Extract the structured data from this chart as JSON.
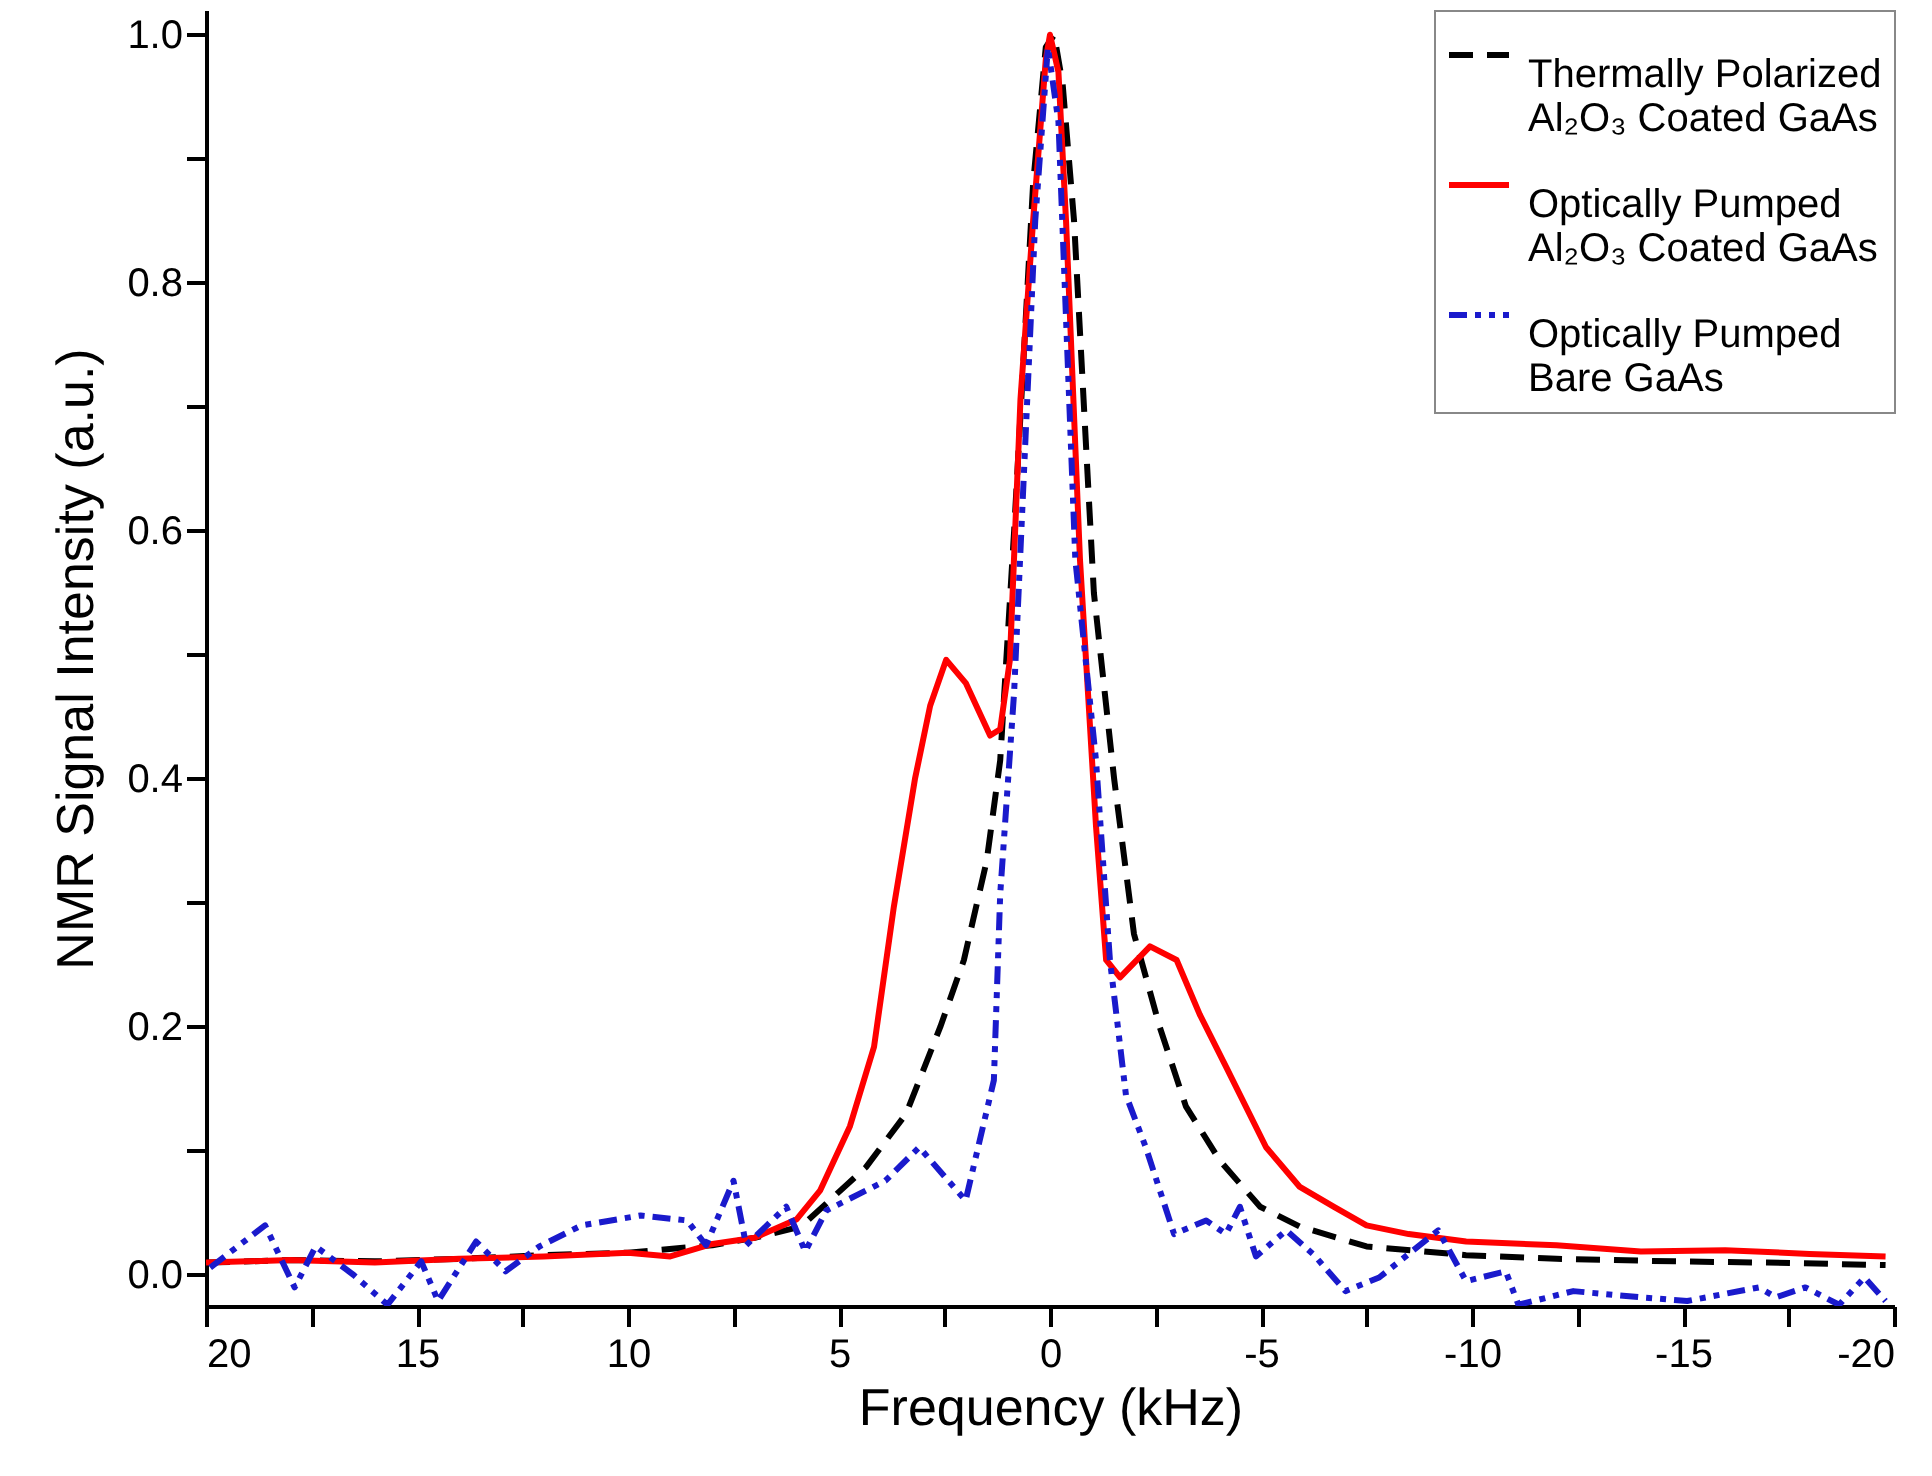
{
  "chart_data": {
    "type": "line",
    "xlabel": "Frequency (kHz)",
    "ylabel": "NMR Signal Intensity (a.u.)",
    "xlim": [
      20,
      -20
    ],
    "ylim": [
      -0.025,
      1.02
    ],
    "xticks": [
      20,
      {
        "value": 17.5,
        "label": null
      },
      15,
      {
        "value": 12.5,
        "label": null
      },
      10,
      {
        "value": 7.5,
        "label": null
      },
      5,
      {
        "value": 2.5,
        "label": null
      },
      0,
      {
        "value": -2.5,
        "label": null
      },
      -5,
      {
        "value": -7.5,
        "label": null
      },
      -10,
      {
        "value": -12.5,
        "label": null
      },
      -15,
      {
        "value": -17.5,
        "label": null
      },
      -20
    ],
    "yticks": [
      {
        "value": 0,
        "label": "0.0"
      },
      {
        "value": 0.1,
        "label": null
      },
      {
        "value": 0.2,
        "label": "0.2"
      },
      {
        "value": 0.3,
        "label": null
      },
      {
        "value": 0.4,
        "label": "0.4"
      },
      {
        "value": 0.5,
        "label": null
      },
      {
        "value": 0.6,
        "label": "0.6"
      },
      {
        "value": 0.7,
        "label": null
      },
      {
        "value": 0.8,
        "label": "0.8"
      },
      {
        "value": 0.9,
        "label": null
      },
      {
        "value": 1.0,
        "label": "1.0"
      }
    ],
    "grid": false,
    "legend": "top right",
    "marker": "none",
    "series": [
      {
        "name": "Thermally Polarized\nAl₂O₃ Coated GaAs",
        "color": "#000000",
        "line_style": "dashed",
        "x": [
          20,
          18,
          16,
          14,
          12,
          10,
          8,
          7,
          5.9,
          4.36,
          3.41,
          2.6,
          2.04,
          1.5,
          1.18,
          0.85,
          0.4,
          0.1,
          -0.1,
          -0.3,
          -0.57,
          -1.04,
          -1.52,
          -1.99,
          -2.6,
          -3.22,
          -4.03,
          -4.98,
          -5.92,
          -7.5,
          -9.86,
          -12,
          -14.8,
          -17,
          -19.8
        ],
        "values": [
          0.01,
          0.012,
          0.011,
          0.013,
          0.016,
          0.018,
          0.024,
          0.03,
          0.039,
          0.087,
          0.13,
          0.2,
          0.254,
          0.334,
          0.415,
          0.6,
          0.88,
          0.99,
          1.0,
          0.96,
          0.85,
          0.55,
          0.4,
          0.275,
          0.2,
          0.136,
          0.092,
          0.055,
          0.039,
          0.023,
          0.016,
          0.013,
          0.011,
          0.01,
          0.008
        ]
      },
      {
        "name": "Optically Pumped\nAl₂O₃ Coated GaAs",
        "color": "#ff0000",
        "line_style": "solid",
        "x": [
          20,
          18,
          16,
          14,
          12,
          10,
          9,
          8,
          7,
          6,
          5.45,
          4.74,
          4.17,
          3.7,
          3.2,
          2.84,
          2.46,
          1.99,
          1.42,
          1.18,
          0.95,
          0.7,
          0.4,
          0.1,
          0,
          -0.2,
          -0.38,
          -0.71,
          -1.09,
          -1.33,
          -1.66,
          -2.37,
          -3.0,
          -3.55,
          -4.17,
          -5.12,
          -5.92,
          -6.73,
          -7.5,
          -8.5,
          -9.86,
          -12,
          -14,
          -16,
          -18,
          -19.8
        ],
        "values": [
          0.01,
          0.012,
          0.01,
          0.013,
          0.015,
          0.018,
          0.015,
          0.025,
          0.03,
          0.045,
          0.068,
          0.12,
          0.184,
          0.297,
          0.4,
          0.459,
          0.496,
          0.477,
          0.435,
          0.44,
          0.496,
          0.706,
          0.85,
          0.98,
          1.0,
          0.97,
          0.85,
          0.577,
          0.362,
          0.254,
          0.24,
          0.265,
          0.254,
          0.21,
          0.168,
          0.103,
          0.071,
          0.055,
          0.04,
          0.033,
          0.027,
          0.024,
          0.019,
          0.02,
          0.017,
          0.015
        ]
      },
      {
        "name": "Optically Pumped\nBare GaAs",
        "color": "#1a1acc",
        "line_style": "dotted",
        "x": [
          19.9,
          18.6,
          17.9,
          17.4,
          16.5,
          15.7,
          14.9,
          14.5,
          13.6,
          12.9,
          12.1,
          11.1,
          9.7,
          8.6,
          8.15,
          7.5,
          7.2,
          6.25,
          5.8,
          5.3,
          3.9,
          3.1,
          2.0,
          1.33,
          1.18,
          0.85,
          0.35,
          0.05,
          -0.2,
          -0.6,
          -1.09,
          -1.42,
          -1.8,
          -2.27,
          -2.94,
          -3.7,
          -4.17,
          -4.5,
          -4.88,
          -5.6,
          -6.26,
          -7.0,
          -7.8,
          -9.2,
          -9.86,
          -10.8,
          -11.1,
          -12.4,
          -14,
          -15.1,
          -16.8,
          -17.2,
          -17.9,
          -18.7,
          -19.3,
          -19.8
        ],
        "values": [
          0.006,
          0.04,
          -0.01,
          0.023,
          0.0,
          -0.024,
          0.011,
          -0.021,
          0.027,
          0.003,
          0.023,
          0.04,
          0.048,
          0.044,
          0.024,
          0.076,
          0.024,
          0.055,
          0.019,
          0.052,
          0.076,
          0.103,
          0.06,
          0.157,
          0.307,
          0.47,
          0.85,
          0.99,
          0.93,
          0.577,
          0.415,
          0.254,
          0.145,
          0.103,
          0.033,
          0.044,
          0.033,
          0.055,
          0.015,
          0.036,
          0.016,
          -0.013,
          -0.002,
          0.036,
          -0.005,
          0.003,
          -0.024,
          -0.013,
          -0.018,
          -0.021,
          -0.01,
          -0.018,
          -0.01,
          -0.024,
          -0.002,
          -0.021
        ]
      }
    ]
  }
}
